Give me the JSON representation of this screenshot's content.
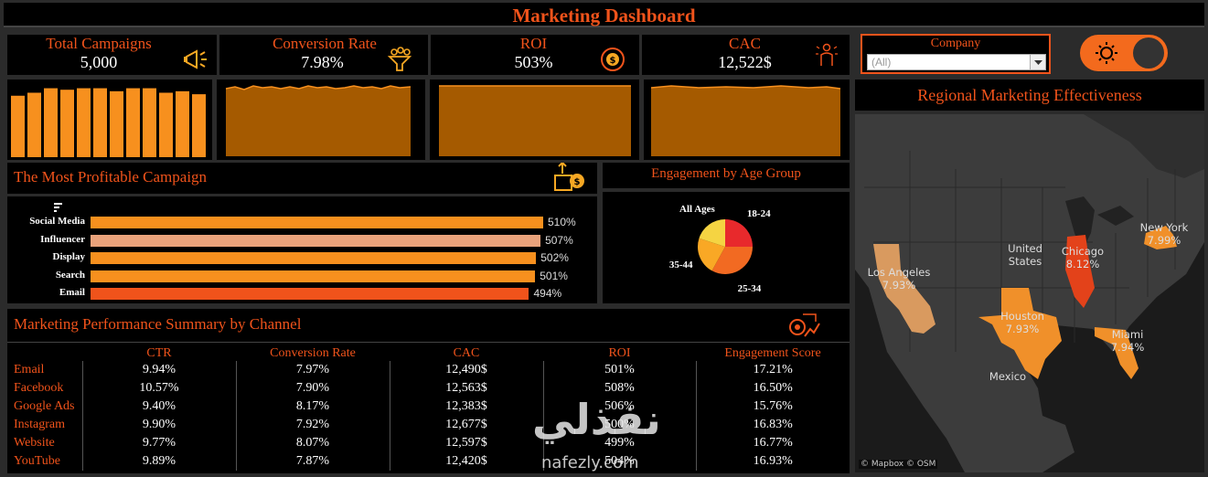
{
  "header": {
    "title": "Marketing Dashboard"
  },
  "kpis": [
    {
      "label": "Total Campaigns",
      "value": "5,000",
      "icon": "megaphone-icon"
    },
    {
      "label": "Conversion Rate",
      "value": "7.98%",
      "icon": "funnel-icon"
    },
    {
      "label": "ROI",
      "value": "503%",
      "icon": "dollar-cycle-icon"
    },
    {
      "label": "CAC",
      "value": "12,522$",
      "icon": "person-target-icon"
    }
  ],
  "filter": {
    "label": "Company",
    "selected": "(All)"
  },
  "theme_toggle": {
    "icon": "sun-icon",
    "state": "light-selected"
  },
  "sparklines": {
    "campaign_bars": [
      0.82,
      0.86,
      0.92,
      0.9,
      0.92,
      0.92,
      0.88,
      0.92,
      0.92,
      0.86,
      0.88,
      0.84
    ]
  },
  "profitable": {
    "title": "The Most Profitable Campaign",
    "filter_icon": "filter-icon",
    "chart_data": {
      "type": "bar",
      "categories": [
        "Social Media",
        "Influencer",
        "Display",
        "Search",
        "Email"
      ],
      "values": [
        510,
        507,
        502,
        501,
        494
      ],
      "labels": [
        "510%",
        "507%",
        "502%",
        "501%",
        "494%"
      ],
      "colors": [
        "#f7901e",
        "#e9a27b",
        "#f7901e",
        "#f7901e",
        "#f0531b"
      ]
    }
  },
  "engagement": {
    "title": "Engagement by Age Group",
    "chart_data": {
      "type": "pie",
      "categories": [
        "18-24",
        "25-34",
        "35-44",
        "All Ages"
      ],
      "values": [
        25,
        33,
        22,
        20
      ],
      "colors": [
        "#e8292c",
        "#f26a22",
        "#f9a825",
        "#f5d442"
      ]
    }
  },
  "performance": {
    "title": "Marketing Performance Summary by Channel",
    "columns": [
      "CTR",
      "Conversion Rate",
      "CAC",
      "ROI",
      "Engagement Score"
    ],
    "rows": [
      {
        "channel": "Email",
        "cells": [
          "9.94%",
          "7.97%",
          "12,490$",
          "501%",
          "17.21%"
        ]
      },
      {
        "channel": "Facebook",
        "cells": [
          "10.57%",
          "7.90%",
          "12,563$",
          "508%",
          "16.50%"
        ]
      },
      {
        "channel": "Google Ads",
        "cells": [
          "9.40%",
          "8.17%",
          "12,383$",
          "506%",
          "15.76%"
        ]
      },
      {
        "channel": "Instagram",
        "cells": [
          "9.90%",
          "7.92%",
          "12,677$",
          "500%",
          "16.83%"
        ]
      },
      {
        "channel": "Website",
        "cells": [
          "9.77%",
          "8.07%",
          "12,597$",
          "499%",
          "16.77%"
        ]
      },
      {
        "channel": "YouTube",
        "cells": [
          "9.89%",
          "7.87%",
          "12,420$",
          "504%",
          "16.93%"
        ]
      }
    ]
  },
  "regional": {
    "title": "Regional Marketing Effectiveness",
    "country_labels": [
      "United States",
      "Mexico"
    ],
    "cities": [
      {
        "name": "Los Angeles",
        "value": "7.93%"
      },
      {
        "name": "Chicago",
        "value": "8.12%"
      },
      {
        "name": "New York",
        "value": "7.99%"
      },
      {
        "name": "Houston",
        "value": "7.93%"
      },
      {
        "name": "Miami",
        "value": "7.94%"
      }
    ],
    "attribution": "© Mapbox © OSM"
  },
  "watermark": {
    "arabic": "نفذلي",
    "latin": "nafezly.com"
  }
}
